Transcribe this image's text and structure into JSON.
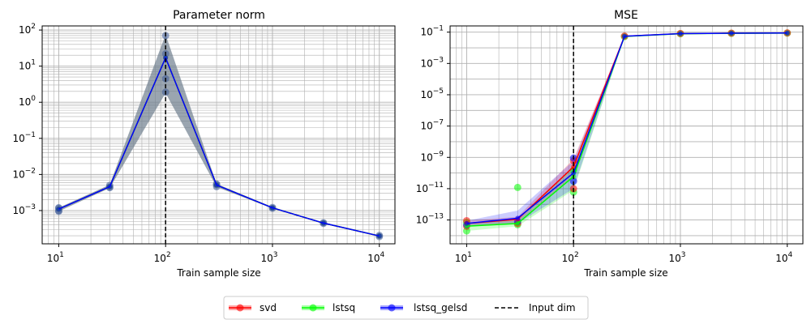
{
  "legend": {
    "items": [
      {
        "label": "svd",
        "color": "#ff0000",
        "kind": "marker-line"
      },
      {
        "label": "lstsq",
        "color": "#00ff00",
        "kind": "marker-line"
      },
      {
        "label": "lstsq_gelsd",
        "color": "#0000ff",
        "kind": "marker-line"
      },
      {
        "label": "Input dim",
        "color": "#000000",
        "kind": "dashed"
      }
    ]
  },
  "chart_data": [
    {
      "type": "line",
      "title": "Parameter norm",
      "xlabel": "Train sample size",
      "ylabel": "",
      "xscale": "log",
      "yscale": "log",
      "xlim": [
        7,
        14000
      ],
      "ylim": [
        0.00012,
        130
      ],
      "grid": "major-and-minor",
      "x_ticks": [
        "10^1",
        "10^2",
        "10^3",
        "10^4"
      ],
      "y_ticks": [
        "10^-3",
        "10^-2",
        "10^-1",
        "10^0",
        "10^1",
        "10^2"
      ],
      "x": [
        10,
        30,
        100,
        300,
        1000,
        3000,
        10000
      ],
      "vline": {
        "x": 100,
        "label": "Input dim",
        "style": "dashed",
        "color": "#000000"
      },
      "band": {
        "lower": [
          0.00095,
          0.0042,
          1.8,
          0.0045,
          0.00115,
          0.00043,
          0.00019
        ],
        "upper": [
          0.0012,
          0.0052,
          75,
          0.0055,
          0.00125,
          0.00046,
          0.000205
        ]
      },
      "series": [
        {
          "name": "svd",
          "color": "#ff0000",
          "values": [
            0.0011,
            0.0046,
            17,
            0.0051,
            0.00119,
            0.00045,
            0.000198
          ]
        },
        {
          "name": "lstsq",
          "color": "#00ff00",
          "values": [
            0.0011,
            0.0046,
            17,
            0.0051,
            0.00119,
            0.00045,
            0.000198
          ]
        },
        {
          "name": "lstsq_gelsd",
          "color": "#0000ff",
          "values": [
            0.0011,
            0.0046,
            17,
            0.0051,
            0.00119,
            0.00045,
            0.000198
          ]
        }
      ],
      "scatter": [
        {
          "x": 10,
          "y": [
            0.00095,
            0.001,
            0.00115,
            0.0012
          ]
        },
        {
          "x": 30,
          "y": [
            0.0043,
            0.0045,
            0.005
          ]
        },
        {
          "x": 100,
          "y": [
            1.9,
            4.5,
            22,
            70
          ]
        },
        {
          "x": 300,
          "y": [
            0.0046,
            0.0052,
            0.0054
          ]
        },
        {
          "x": 1000,
          "y": [
            0.00116,
            0.00122
          ]
        },
        {
          "x": 3000,
          "y": [
            0.00044,
            0.00046
          ]
        },
        {
          "x": 10000,
          "y": [
            0.00019,
            0.000205
          ]
        }
      ]
    },
    {
      "type": "line",
      "title": "MSE",
      "xlabel": "Train sample size",
      "ylabel": "",
      "xscale": "log",
      "yscale": "log",
      "xlim": [
        7,
        14000
      ],
      "ylim": [
        3e-15,
        0.25
      ],
      "grid": "major-and-minor",
      "x_ticks": [
        "10^1",
        "10^2",
        "10^3",
        "10^4"
      ],
      "y_ticks": [
        "10^-13",
        "10^-11",
        "10^-9",
        "10^-7",
        "10^-5",
        "10^-3",
        "10^-1"
      ],
      "x": [
        10,
        30,
        100,
        300,
        1000,
        3000,
        10000
      ],
      "vline": {
        "x": 100,
        "label": "Input dim",
        "style": "dashed",
        "color": "#000000"
      },
      "series": [
        {
          "name": "svd",
          "color": "#ff0000",
          "values": [
            6e-14,
            1.1e-13,
            2.5e-10,
            0.055,
            0.08,
            0.085,
            0.088
          ],
          "band_lower": [
            4e-14,
            7e-14,
            6e-11,
            0.052,
            0.078,
            0.083,
            0.086
          ],
          "band_upper": [
            9e-14,
            1.6e-13,
            8e-10,
            0.058,
            0.082,
            0.087,
            0.09
          ]
        },
        {
          "name": "lstsq",
          "color": "#00ff00",
          "values": [
            4e-14,
            6e-14,
            6e-11,
            0.053,
            0.079,
            0.084,
            0.087
          ],
          "band_lower": [
            2e-14,
            4e-14,
            8e-12,
            0.05,
            0.077,
            0.082,
            0.085
          ],
          "band_upper": [
            7e-14,
            9e-14,
            3e-10,
            0.056,
            0.081,
            0.086,
            0.089
          ]
        },
        {
          "name": "lstsq_gelsd",
          "color": "#0000ff",
          "values": [
            6e-14,
            1.3e-13,
            1e-10,
            0.055,
            0.08,
            0.085,
            0.088
          ],
          "band_lower": [
            4e-14,
            6e-14,
            1e-11,
            0.052,
            0.078,
            0.083,
            0.086
          ],
          "band_upper": [
            9e-14,
            4e-13,
            6e-10,
            0.058,
            0.082,
            0.087,
            0.09
          ]
        }
      ],
      "scatter": [
        {
          "x": 10,
          "y": [
            2e-14,
            4e-14,
            5e-14,
            7e-14,
            9e-14
          ]
        },
        {
          "x": 30,
          "y": [
            5e-14,
            6e-14,
            8e-14,
            1.2e-11
          ]
        },
        {
          "x": 100,
          "y": [
            6e-12,
            1e-11,
            3e-11,
            1.5e-10,
            6e-10,
            9e-10
          ]
        },
        {
          "x": 300,
          "y": [
            0.052,
            0.056
          ]
        },
        {
          "x": 1000,
          "y": [
            0.079,
            0.082
          ]
        },
        {
          "x": 3000,
          "y": [
            0.084,
            0.086
          ]
        },
        {
          "x": 10000,
          "y": [
            0.087,
            0.089
          ]
        }
      ]
    }
  ]
}
